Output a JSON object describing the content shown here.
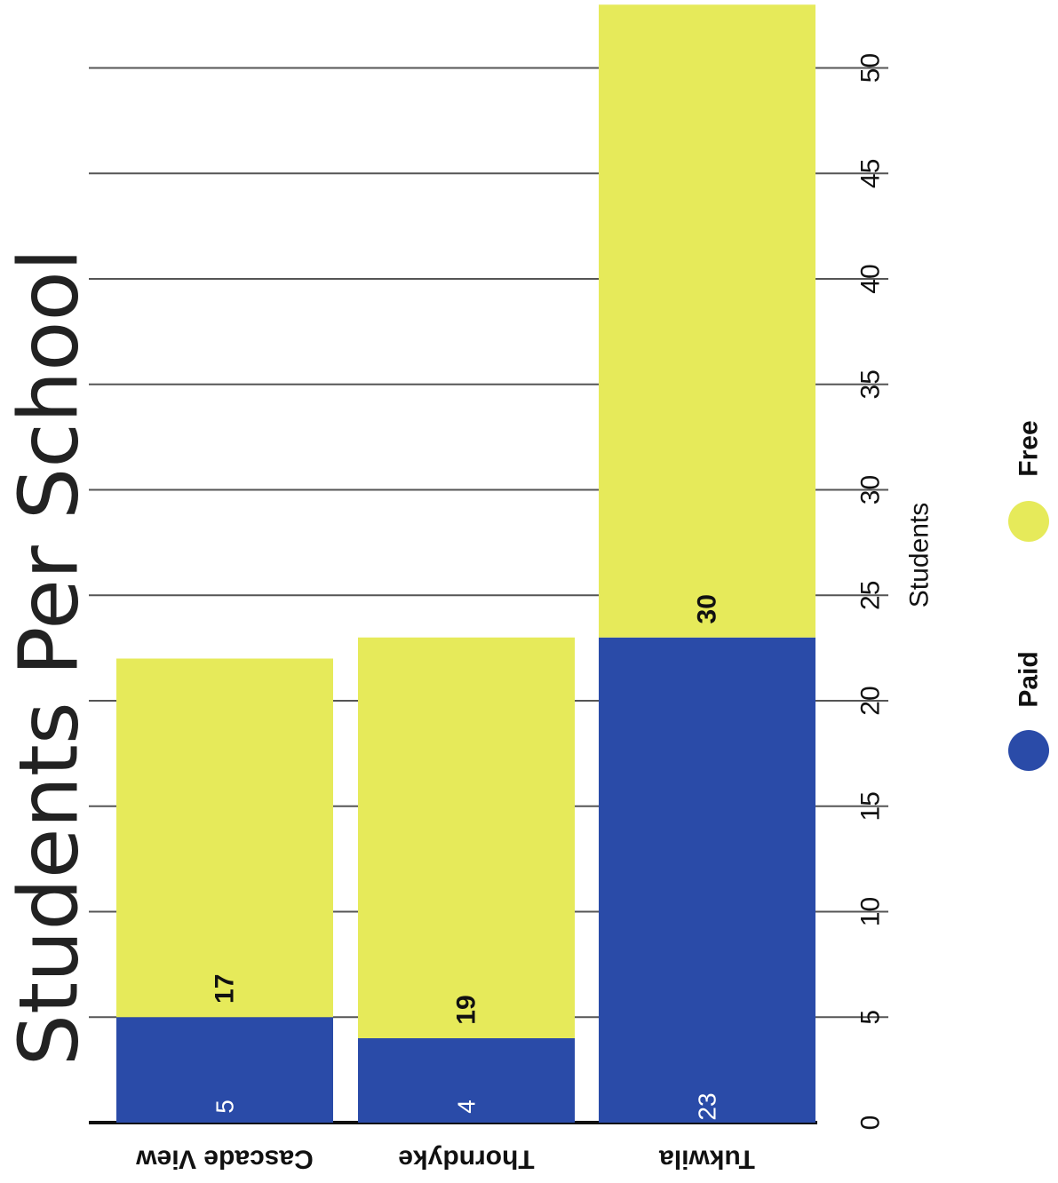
{
  "chart_data": {
    "type": "bar",
    "stacked": true,
    "orientation": "horizontal",
    "title": "Students Per School",
    "xlabel": "Students",
    "ylabel": "",
    "xlim": [
      0,
      53
    ],
    "xticks": [
      "0",
      "5",
      "10",
      "15",
      "20",
      "25",
      "30",
      "35",
      "40",
      "45",
      "50"
    ],
    "categories": [
      "Cascade View",
      "Thorndyke",
      "Tukwila"
    ],
    "series": [
      {
        "name": "Paid",
        "values": [
          5,
          4,
          23
        ],
        "color": "#2a4ba8"
      },
      {
        "name": "Free",
        "values": [
          17,
          19,
          30
        ],
        "color": "#e6ea5a"
      }
    ],
    "data_labels": {
      "paid": [
        "5",
        "4",
        "23"
      ],
      "free": [
        "17",
        "19",
        "30"
      ]
    },
    "legend": {
      "placement": "bottom",
      "items": [
        "Paid",
        "Free"
      ]
    },
    "grid": true
  }
}
